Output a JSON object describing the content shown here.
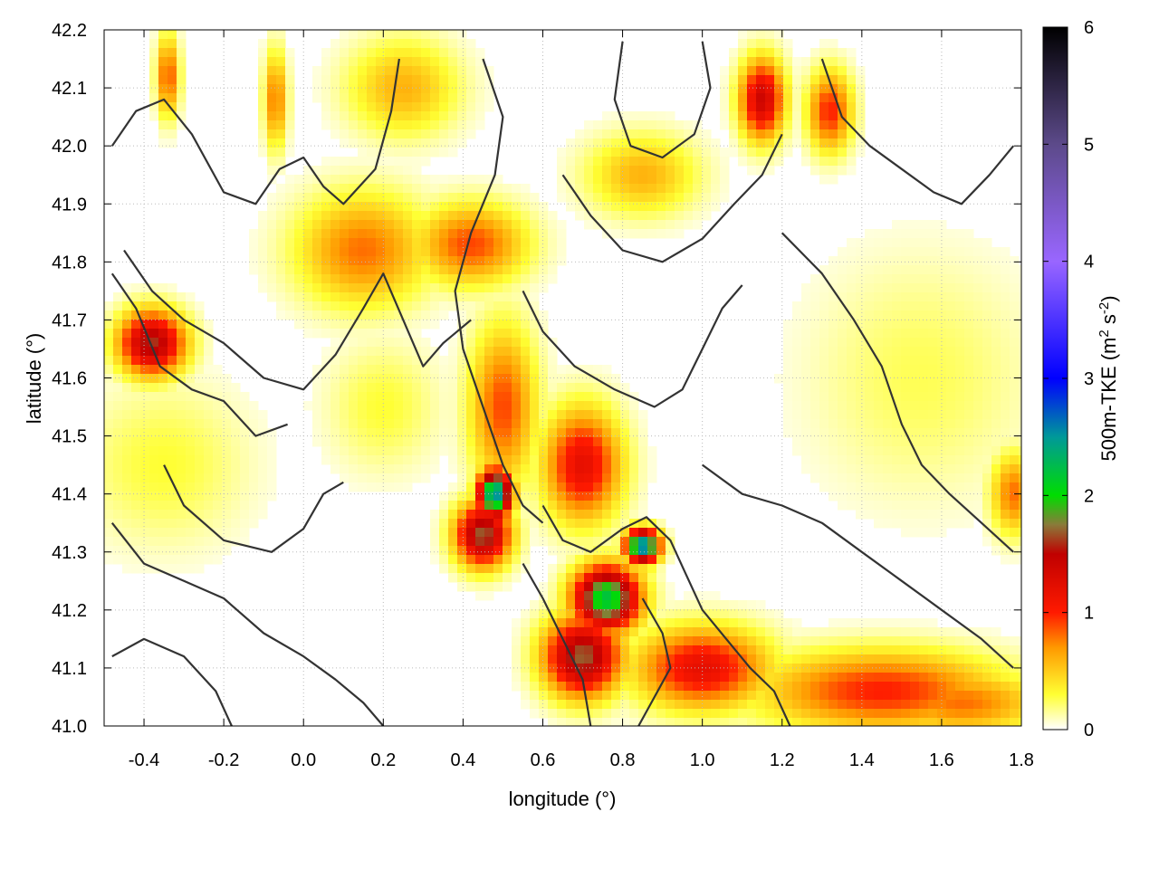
{
  "chart_data": {
    "type": "heatmap",
    "title": "",
    "xlabel": "longitude (°)",
    "ylabel": "latitude (°)",
    "xlim": [
      -0.5,
      1.8
    ],
    "ylim": [
      41.0,
      42.2
    ],
    "x_ticks": [
      -0.4,
      -0.2,
      0.0,
      0.2,
      0.4,
      0.6,
      0.8,
      1.0,
      1.2,
      1.4,
      1.6,
      1.8
    ],
    "x_tick_labels": [
      "-0.4",
      "-0.2",
      "0.0",
      "0.2",
      "0.4",
      "0.6",
      "0.8",
      "1.0",
      "1.2",
      "1.4",
      "1.6",
      "1.8"
    ],
    "y_ticks": [
      41.0,
      41.1,
      41.2,
      41.3,
      41.4,
      41.5,
      41.6,
      41.7,
      41.8,
      41.9,
      42.0,
      42.1,
      42.2
    ],
    "y_tick_labels": [
      "41.0",
      "41.1",
      "41.2",
      "41.3",
      "41.4",
      "41.5",
      "41.6",
      "41.7",
      "41.8",
      "41.9",
      "42.0",
      "42.1",
      "42.2"
    ],
    "grid": true,
    "colorbar": {
      "label": "500m-TKE (m² s⁻²)",
      "label_main": "500m-TKE (m",
      "label_sup1": "2",
      "label_mid": " s",
      "label_sup2": "-2",
      "label_end": ")",
      "range": [
        0,
        6
      ],
      "ticks": [
        0,
        1,
        2,
        3,
        4,
        5,
        6
      ],
      "tick_labels": [
        "0",
        "1",
        "2",
        "3",
        "4",
        "5",
        "6"
      ],
      "stops": [
        {
          "value": 0.0,
          "color": "#ffffff"
        },
        {
          "value": 0.3,
          "color": "#ffff33"
        },
        {
          "value": 0.7,
          "color": "#ff9900"
        },
        {
          "value": 1.0,
          "color": "#ff1a00"
        },
        {
          "value": 1.5,
          "color": "#c00000"
        },
        {
          "value": 1.75,
          "color": "#8a7a3a"
        },
        {
          "value": 2.0,
          "color": "#00dd00"
        },
        {
          "value": 2.5,
          "color": "#009999"
        },
        {
          "value": 3.0,
          "color": "#0000ff"
        },
        {
          "value": 4.0,
          "color": "#9966ff"
        },
        {
          "value": 5.0,
          "color": "#5c4a8a"
        },
        {
          "value": 6.0,
          "color": "#000000"
        }
      ]
    },
    "field_features": [
      {
        "lon": 0.15,
        "lat": 41.82,
        "value": 0.8,
        "slon": 0.12,
        "slat": 0.07
      },
      {
        "lon": 0.42,
        "lat": 41.83,
        "value": 0.9,
        "slon": 0.1,
        "slat": 0.05
      },
      {
        "lon": 0.5,
        "lat": 41.55,
        "value": 0.9,
        "slon": 0.06,
        "slat": 0.1
      },
      {
        "lon": 0.7,
        "lat": 41.45,
        "value": 1.2,
        "slon": 0.07,
        "slat": 0.07
      },
      {
        "lon": 0.48,
        "lat": 41.4,
        "value": 2.6,
        "slon": 0.03,
        "slat": 0.03
      },
      {
        "lon": 0.45,
        "lat": 41.33,
        "value": 1.7,
        "slon": 0.05,
        "slat": 0.04
      },
      {
        "lon": 0.76,
        "lat": 41.22,
        "value": 2.2,
        "slon": 0.06,
        "slat": 0.04
      },
      {
        "lon": 0.7,
        "lat": 41.12,
        "value": 1.7,
        "slon": 0.07,
        "slat": 0.05
      },
      {
        "lon": 0.85,
        "lat": 41.31,
        "value": 2.7,
        "slon": 0.03,
        "slat": 0.02
      },
      {
        "lon": 1.0,
        "lat": 41.1,
        "value": 1.2,
        "slon": 0.12,
        "slat": 0.05
      },
      {
        "lon": 1.45,
        "lat": 41.06,
        "value": 1.0,
        "slon": 0.22,
        "slat": 0.05
      },
      {
        "lon": 1.65,
        "lat": 41.04,
        "value": 0.8,
        "slon": 0.15,
        "slat": 0.04
      },
      {
        "lon": -0.38,
        "lat": 41.66,
        "value": 1.6,
        "slon": 0.06,
        "slat": 0.04
      },
      {
        "lon": -0.34,
        "lat": 42.12,
        "value": 0.9,
        "slon": 0.02,
        "slat": 0.05
      },
      {
        "lon": -0.07,
        "lat": 42.08,
        "value": 0.8,
        "slon": 0.02,
        "slat": 0.06
      },
      {
        "lon": 1.15,
        "lat": 42.08,
        "value": 1.4,
        "slon": 0.04,
        "slat": 0.05
      },
      {
        "lon": 1.32,
        "lat": 42.06,
        "value": 1.0,
        "slon": 0.04,
        "slat": 0.05
      },
      {
        "lon": 0.25,
        "lat": 42.1,
        "value": 0.6,
        "slon": 0.1,
        "slat": 0.06
      },
      {
        "lon": 0.85,
        "lat": 41.95,
        "value": 0.6,
        "slon": 0.1,
        "slat": 0.05
      },
      {
        "lon": 1.78,
        "lat": 41.4,
        "value": 0.8,
        "slon": 0.04,
        "slat": 0.05
      },
      {
        "lon": -0.35,
        "lat": 41.45,
        "value": 0.3,
        "slon": 0.15,
        "slat": 0.1
      },
      {
        "lon": 1.55,
        "lat": 41.6,
        "value": 0.25,
        "slon": 0.2,
        "slat": 0.15
      },
      {
        "lon": 0.2,
        "lat": 41.55,
        "value": 0.3,
        "slon": 0.1,
        "slat": 0.08
      }
    ],
    "contours": [
      [
        [
          -0.48,
          42.0
        ],
        [
          -0.42,
          42.06
        ],
        [
          -0.35,
          42.08
        ],
        [
          -0.28,
          42.02
        ],
        [
          -0.2,
          41.92
        ],
        [
          -0.12,
          41.9
        ],
        [
          -0.06,
          41.96
        ],
        [
          0.0,
          41.98
        ],
        [
          0.05,
          41.93
        ],
        [
          0.1,
          41.9
        ],
        [
          0.18,
          41.96
        ],
        [
          0.22,
          42.06
        ],
        [
          0.24,
          42.15
        ]
      ],
      [
        [
          -0.45,
          41.82
        ],
        [
          -0.38,
          41.75
        ],
        [
          -0.3,
          41.7
        ],
        [
          -0.2,
          41.66
        ],
        [
          -0.1,
          41.6
        ],
        [
          0.0,
          41.58
        ],
        [
          0.08,
          41.64
        ],
        [
          0.15,
          41.72
        ],
        [
          0.2,
          41.78
        ],
        [
          0.25,
          41.7
        ],
        [
          0.3,
          41.62
        ],
        [
          0.35,
          41.66
        ],
        [
          0.42,
          41.7
        ]
      ],
      [
        [
          -0.48,
          41.78
        ],
        [
          -0.42,
          41.72
        ],
        [
          -0.36,
          41.62
        ],
        [
          -0.28,
          41.58
        ],
        [
          -0.2,
          41.56
        ],
        [
          -0.12,
          41.5
        ],
        [
          -0.04,
          41.52
        ]
      ],
      [
        [
          -0.35,
          41.45
        ],
        [
          -0.3,
          41.38
        ],
        [
          -0.2,
          41.32
        ],
        [
          -0.08,
          41.3
        ],
        [
          0.0,
          41.34
        ],
        [
          0.05,
          41.4
        ],
        [
          0.1,
          41.42
        ]
      ],
      [
        [
          -0.48,
          41.35
        ],
        [
          -0.4,
          41.28
        ],
        [
          -0.3,
          41.25
        ],
        [
          -0.2,
          41.22
        ],
        [
          -0.1,
          41.16
        ],
        [
          0.0,
          41.12
        ],
        [
          0.08,
          41.08
        ],
        [
          0.15,
          41.04
        ],
        [
          0.2,
          41.0
        ]
      ],
      [
        [
          -0.48,
          41.12
        ],
        [
          -0.4,
          41.15
        ],
        [
          -0.3,
          41.12
        ],
        [
          -0.22,
          41.06
        ],
        [
          -0.18,
          41.0
        ]
      ],
      [
        [
          0.45,
          42.15
        ],
        [
          0.5,
          42.05
        ],
        [
          0.48,
          41.95
        ],
        [
          0.42,
          41.85
        ],
        [
          0.38,
          41.75
        ],
        [
          0.4,
          41.65
        ],
        [
          0.45,
          41.55
        ],
        [
          0.5,
          41.45
        ],
        [
          0.55,
          41.38
        ],
        [
          0.6,
          41.35
        ]
      ],
      [
        [
          0.55,
          41.75
        ],
        [
          0.6,
          41.68
        ],
        [
          0.68,
          41.62
        ],
        [
          0.78,
          41.58
        ],
        [
          0.88,
          41.55
        ],
        [
          0.95,
          41.58
        ],
        [
          1.0,
          41.65
        ],
        [
          1.05,
          41.72
        ],
        [
          1.1,
          41.76
        ]
      ],
      [
        [
          0.65,
          41.95
        ],
        [
          0.72,
          41.88
        ],
        [
          0.8,
          41.82
        ],
        [
          0.9,
          41.8
        ],
        [
          1.0,
          41.84
        ],
        [
          1.08,
          41.9
        ],
        [
          1.15,
          41.95
        ],
        [
          1.2,
          42.02
        ]
      ],
      [
        [
          0.8,
          42.18
        ],
        [
          0.78,
          42.08
        ],
        [
          0.82,
          42.0
        ],
        [
          0.9,
          41.98
        ],
        [
          0.98,
          42.02
        ],
        [
          1.02,
          42.1
        ],
        [
          1.0,
          42.18
        ]
      ],
      [
        [
          1.2,
          41.85
        ],
        [
          1.3,
          41.78
        ],
        [
          1.38,
          41.7
        ],
        [
          1.45,
          41.62
        ],
        [
          1.5,
          41.52
        ],
        [
          1.55,
          41.45
        ],
        [
          1.62,
          41.4
        ],
        [
          1.7,
          41.35
        ],
        [
          1.78,
          41.3
        ]
      ],
      [
        [
          1.0,
          41.45
        ],
        [
          1.1,
          41.4
        ],
        [
          1.2,
          41.38
        ],
        [
          1.3,
          41.35
        ],
        [
          1.4,
          41.3
        ],
        [
          1.5,
          41.25
        ],
        [
          1.6,
          41.2
        ],
        [
          1.7,
          41.15
        ],
        [
          1.78,
          41.1
        ]
      ],
      [
        [
          0.55,
          41.28
        ],
        [
          0.6,
          41.22
        ],
        [
          0.65,
          41.15
        ],
        [
          0.7,
          41.08
        ],
        [
          0.72,
          41.0
        ]
      ],
      [
        [
          0.6,
          41.38
        ],
        [
          0.65,
          41.32
        ],
        [
          0.72,
          41.3
        ],
        [
          0.8,
          41.34
        ],
        [
          0.86,
          41.36
        ],
        [
          0.92,
          41.32
        ],
        [
          0.96,
          41.26
        ],
        [
          1.0,
          41.2
        ],
        [
          1.06,
          41.15
        ],
        [
          1.12,
          41.1
        ],
        [
          1.18,
          41.06
        ],
        [
          1.22,
          41.0
        ]
      ],
      [
        [
          0.85,
          41.22
        ],
        [
          0.9,
          41.16
        ],
        [
          0.92,
          41.1
        ],
        [
          0.88,
          41.05
        ],
        [
          0.84,
          41.0
        ]
      ],
      [
        [
          1.3,
          42.15
        ],
        [
          1.35,
          42.05
        ],
        [
          1.42,
          42.0
        ],
        [
          1.5,
          41.96
        ],
        [
          1.58,
          41.92
        ],
        [
          1.65,
          41.9
        ],
        [
          1.72,
          41.95
        ],
        [
          1.78,
          42.0
        ]
      ]
    ]
  }
}
